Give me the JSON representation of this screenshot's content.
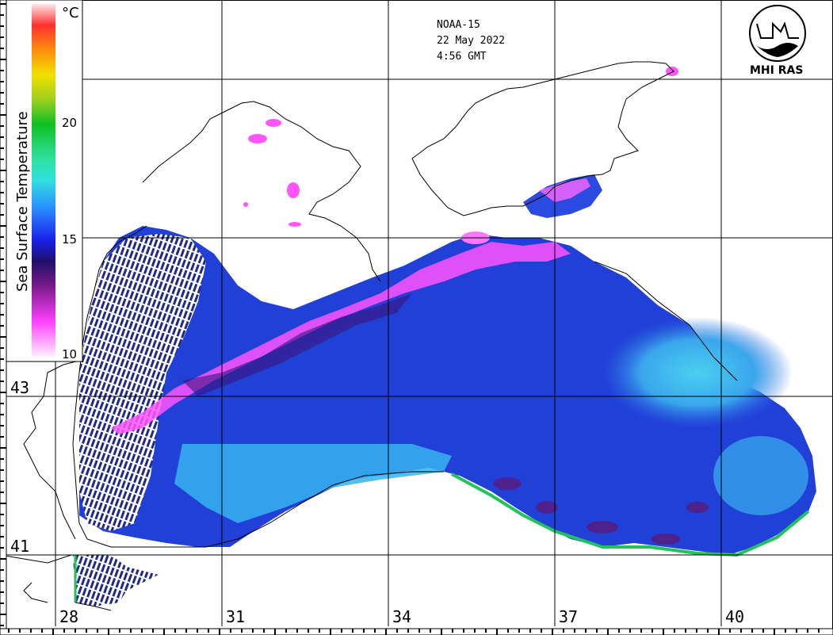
{
  "header": {
    "satellite": "NOAA-15",
    "date": "22 May 2022",
    "time": "4:56 GMT"
  },
  "logo": {
    "text": "MHI RAS"
  },
  "colorbar": {
    "unit": "°C",
    "title": "Sea Surface Temperature",
    "ticks": [
      "20",
      "15",
      "10"
    ],
    "tick_values": [
      20,
      15,
      10
    ],
    "range": [
      10,
      25
    ]
  },
  "grid": {
    "lon_labels": [
      "28",
      "31",
      "34",
      "37",
      "40"
    ],
    "lat_labels": [
      "43",
      "41"
    ]
  },
  "palette": {
    "coast": "#000000",
    "warm_shelf": "#ff66ff",
    "deep_blue": "#1a1fd0",
    "mid_blue": "#2b5fe8",
    "cyan": "#33c6f0",
    "green_edge": "#22c35a",
    "purple": "#5a1a7a"
  }
}
